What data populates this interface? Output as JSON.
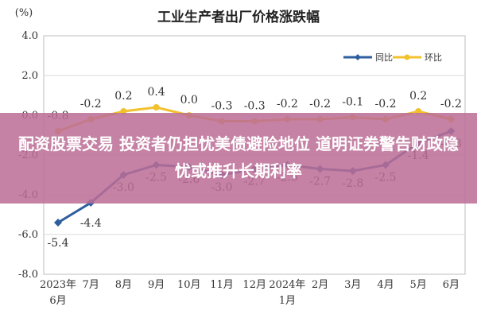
{
  "overlay": {
    "headline": "配资股票交易 投资者仍担忧美债避险地位 道明证券警告财政隐忧或推升长期利率",
    "background_color": "#bc6e96"
  },
  "chart_data": {
    "type": "line",
    "title": "工业生产者出厂价格涨跌幅",
    "unit_label": "(%)",
    "xlabel": "",
    "ylabel": "",
    "ylim": [
      -8.0,
      4.0
    ],
    "yticks": [
      "4.0",
      "2.0",
      "0.0",
      "-2.0",
      "-4.0",
      "-6.0",
      "-8.0"
    ],
    "categories": [
      "2023年6月",
      "7月",
      "8月",
      "9月",
      "10月",
      "11月",
      "12月",
      "2024年1月",
      "2月",
      "3月",
      "4月",
      "5月",
      "6月"
    ],
    "grid": true,
    "legend_position": "top-right",
    "series": [
      {
        "name": "同比",
        "color": "#2e5e9e",
        "values": [
          -5.4,
          -4.4,
          -3.0,
          -2.5,
          -2.6,
          -3.0,
          -2.7,
          -2.5,
          -2.7,
          -2.8,
          -2.5,
          -1.4,
          -0.8
        ],
        "labels": [
          "-5.4",
          "-4.4",
          "-3.0",
          "-2.5",
          "-2.6",
          "-3.0",
          "-2.7",
          "-2.5",
          "-2.7",
          "-2.8",
          "-2.5",
          "-1.4",
          "-0.8"
        ]
      },
      {
        "name": "环比",
        "color": "#f2c12e",
        "values": [
          -0.8,
          -0.2,
          0.2,
          0.4,
          0.0,
          -0.3,
          -0.3,
          -0.2,
          -0.2,
          -0.1,
          -0.2,
          0.2,
          -0.2
        ],
        "labels": [
          "-0.8",
          "-0.2",
          "0.2",
          "0.4",
          "0.0",
          "-0.3",
          "-0.3",
          "-0.2",
          "-0.2",
          "-0.1",
          "-0.2",
          "0.2",
          "-0.2"
        ]
      }
    ]
  }
}
